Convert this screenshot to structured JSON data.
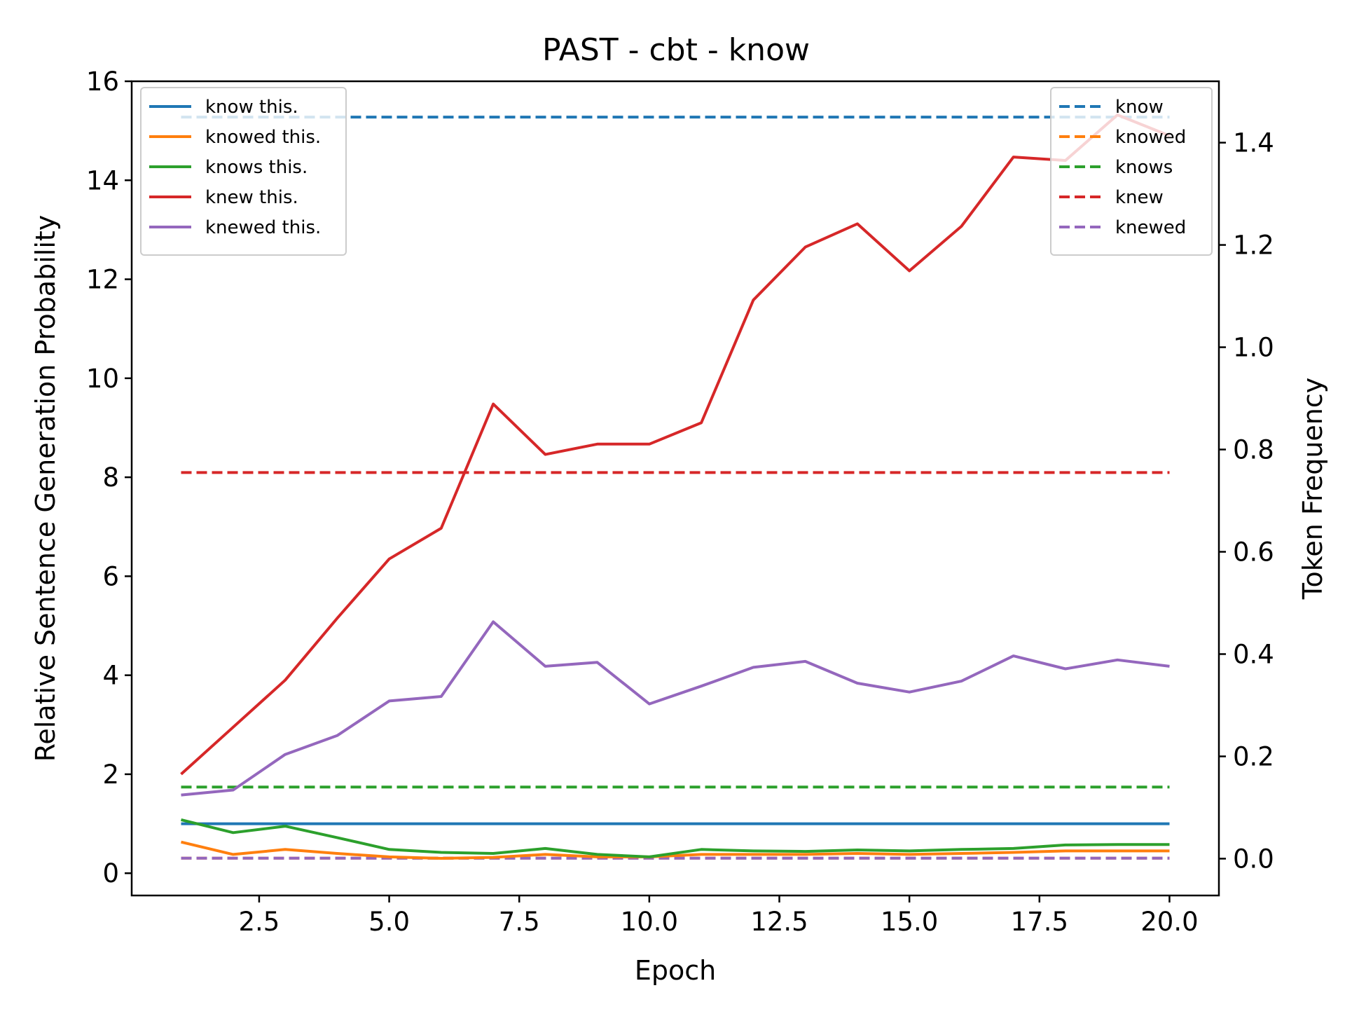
{
  "chart_data": {
    "type": "line",
    "title": "PAST - cbt - know",
    "xlabel": "Epoch",
    "ylabel": "Relative Sentence Generation Probability",
    "y2label": "Token Frequency",
    "xlim": [
      0.05,
      20.95
    ],
    "ylim": [
      -0.45,
      16.0
    ],
    "y2lim": [
      -0.072,
      1.52
    ],
    "xticks": [
      2.5,
      5.0,
      7.5,
      10.0,
      12.5,
      15.0,
      17.5,
      20.0
    ],
    "xtick_labels": [
      "2.5",
      "5.0",
      "7.5",
      "10.0",
      "12.5",
      "15.0",
      "17.5",
      "20.0"
    ],
    "yticks": [
      0,
      2,
      4,
      6,
      8,
      10,
      12,
      14,
      16
    ],
    "ytick_labels": [
      "0",
      "2",
      "4",
      "6",
      "8",
      "10",
      "12",
      "14",
      "16"
    ],
    "y2ticks": [
      0.0,
      0.2,
      0.4,
      0.6,
      0.8,
      1.0,
      1.2,
      1.4
    ],
    "y2tick_labels": [
      "0.0",
      "0.2",
      "0.4",
      "0.6",
      "0.8",
      "1.0",
      "1.2",
      "1.4"
    ],
    "grid": false,
    "legend_left_position": "upper-left",
    "legend_right_position": "upper-right",
    "x": [
      1,
      2,
      3,
      4,
      5,
      6,
      7,
      8,
      9,
      10,
      11,
      12,
      13,
      14,
      15,
      16,
      17,
      18,
      19,
      20
    ],
    "series": [
      {
        "name": "know this.",
        "color": "#1f77b4",
        "axis": "left",
        "style": "solid",
        "values": [
          1,
          1,
          1,
          1,
          1,
          1,
          1,
          1,
          1,
          1,
          1,
          1,
          1,
          1,
          1,
          1,
          1,
          1,
          1,
          1
        ]
      },
      {
        "name": "knowed this.",
        "color": "#ff7f0e",
        "axis": "left",
        "style": "solid",
        "values": [
          0.63,
          0.38,
          0.48,
          0.4,
          0.33,
          0.3,
          0.32,
          0.38,
          0.33,
          0.33,
          0.38,
          0.38,
          0.38,
          0.4,
          0.38,
          0.4,
          0.42,
          0.45,
          0.45,
          0.45
        ]
      },
      {
        "name": "knows this.",
        "color": "#2ca02c",
        "axis": "left",
        "style": "solid",
        "values": [
          1.08,
          0.82,
          0.95,
          0.72,
          0.48,
          0.42,
          0.4,
          0.5,
          0.38,
          0.33,
          0.48,
          0.45,
          0.44,
          0.47,
          0.45,
          0.48,
          0.5,
          0.57,
          0.58,
          0.58
        ]
      },
      {
        "name": "knew this.",
        "color": "#d62728",
        "axis": "left",
        "style": "solid",
        "values": [
          2.0,
          2.95,
          3.9,
          5.15,
          6.35,
          6.97,
          9.48,
          8.46,
          8.67,
          8.67,
          9.1,
          11.58,
          12.65,
          13.12,
          12.17,
          13.07,
          14.47,
          14.4,
          15.32,
          14.9
        ]
      },
      {
        "name": "knewed this.",
        "color": "#9467bd",
        "axis": "left",
        "style": "solid",
        "values": [
          1.58,
          1.68,
          2.4,
          2.78,
          3.48,
          3.57,
          5.08,
          4.18,
          4.26,
          3.42,
          3.78,
          4.16,
          4.28,
          3.84,
          3.66,
          3.88,
          4.39,
          4.13,
          4.31,
          4.18
        ]
      },
      {
        "name": "know",
        "color": "#1f77b4",
        "axis": "right",
        "style": "dashed",
        "values": [
          1.45,
          1.45,
          1.45,
          1.45,
          1.45,
          1.45,
          1.45,
          1.45,
          1.45,
          1.45,
          1.45,
          1.45,
          1.45,
          1.45,
          1.45,
          1.45,
          1.45,
          1.45,
          1.45,
          1.45
        ]
      },
      {
        "name": "knowed",
        "color": "#ff7f0e",
        "axis": "right",
        "style": "dashed",
        "values": [
          0.001,
          0.001,
          0.001,
          0.001,
          0.001,
          0.001,
          0.001,
          0.001,
          0.001,
          0.001,
          0.001,
          0.001,
          0.001,
          0.001,
          0.001,
          0.001,
          0.001,
          0.001,
          0.001,
          0.001
        ]
      },
      {
        "name": "knows",
        "color": "#2ca02c",
        "axis": "right",
        "style": "dashed",
        "values": [
          0.14,
          0.14,
          0.14,
          0.14,
          0.14,
          0.14,
          0.14,
          0.14,
          0.14,
          0.14,
          0.14,
          0.14,
          0.14,
          0.14,
          0.14,
          0.14,
          0.14,
          0.14,
          0.14,
          0.14
        ]
      },
      {
        "name": "knew",
        "color": "#d62728",
        "axis": "right",
        "style": "dashed",
        "values": [
          0.755,
          0.755,
          0.755,
          0.755,
          0.755,
          0.755,
          0.755,
          0.755,
          0.755,
          0.755,
          0.755,
          0.755,
          0.755,
          0.755,
          0.755,
          0.755,
          0.755,
          0.755,
          0.755,
          0.755
        ]
      },
      {
        "name": "knewed",
        "color": "#9467bd",
        "axis": "right",
        "style": "dashed",
        "values": [
          0.001,
          0.001,
          0.001,
          0.001,
          0.001,
          0.001,
          0.001,
          0.001,
          0.001,
          0.001,
          0.001,
          0.001,
          0.001,
          0.001,
          0.001,
          0.001,
          0.001,
          0.001,
          0.001,
          0.001
        ]
      }
    ]
  }
}
